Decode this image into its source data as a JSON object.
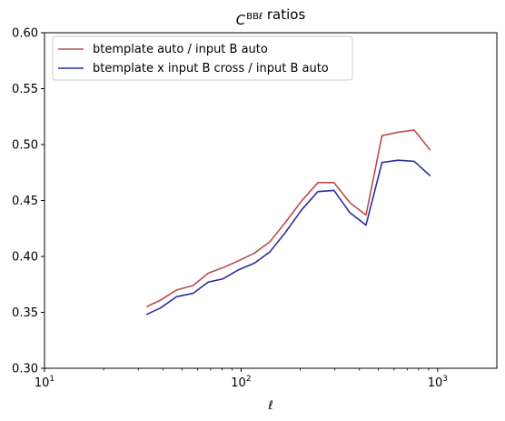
{
  "chart_data": {
    "type": "line",
    "title_base": "C",
    "title_sub": "ℓ",
    "title_sup": "BB",
    "title_rest": " ratios",
    "xlabel": "ℓ",
    "ylabel": "",
    "xscale": "log",
    "xlim": [
      10,
      2000
    ],
    "ylim": [
      0.3,
      0.6
    ],
    "x_tick_labels": [
      {
        "base": "10",
        "exp": "1",
        "value": 10
      },
      {
        "base": "10",
        "exp": "2",
        "value": 100
      },
      {
        "base": "10",
        "exp": "3",
        "value": 1000
      }
    ],
    "y_ticks": [
      0.3,
      0.35,
      0.4,
      0.45,
      0.5,
      0.55,
      0.6
    ],
    "y_tick_labels": [
      "0.30",
      "0.35",
      "0.40",
      "0.45",
      "0.50",
      "0.55",
      "0.60"
    ],
    "legend_position": "top-left",
    "x": [
      33,
      39,
      47,
      57,
      68,
      81,
      97,
      117,
      140,
      169,
      204,
      246,
      297,
      358,
      432,
      521,
      629,
      760,
      917
    ],
    "series": [
      {
        "name": "btemplate auto / input B auto",
        "color": "#bd4b4b",
        "values": [
          0.355,
          0.361,
          0.37,
          0.374,
          0.385,
          0.39,
          0.396,
          0.403,
          0.413,
          0.431,
          0.45,
          0.466,
          0.466,
          0.448,
          0.437,
          0.508,
          0.511,
          0.513,
          0.495
        ]
      },
      {
        "name": "btemplate x input B cross / input B auto",
        "color": "#2b2f9a",
        "values": [
          0.348,
          0.354,
          0.364,
          0.367,
          0.377,
          0.38,
          0.388,
          0.394,
          0.404,
          0.422,
          0.442,
          0.458,
          0.459,
          0.439,
          0.428,
          0.484,
          0.486,
          0.485,
          0.472
        ]
      }
    ]
  }
}
